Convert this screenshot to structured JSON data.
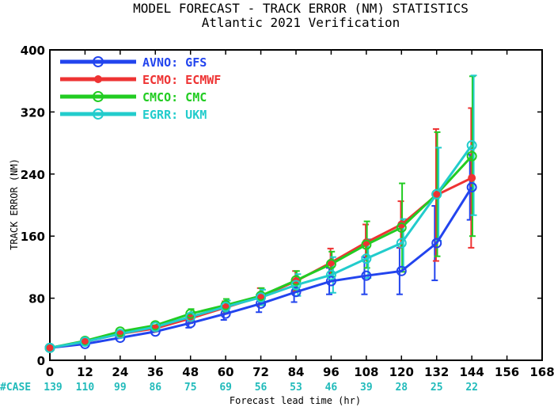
{
  "chart_data": {
    "type": "line",
    "title": "MODEL FORECAST - TRACK ERROR (NM) STATISTICS",
    "subtitle": "Atlantic 2021 Verification",
    "xlabel": "Forecast lead time (hr)",
    "ylabel": "TRACK ERROR (NM)",
    "xlim": [
      0,
      168
    ],
    "ylim": [
      0,
      400
    ],
    "xticks": [
      "0",
      "12",
      "24",
      "36",
      "48",
      "60",
      "72",
      "84",
      "96",
      "108",
      "120",
      "132",
      "144",
      "156",
      "168"
    ],
    "yticks": [
      "0",
      "80",
      "160",
      "240",
      "320",
      "400"
    ],
    "grid": false,
    "legend_position": "top-left",
    "cases_label": "#CASE",
    "cases": [
      {
        "x": 0,
        "n": "139"
      },
      {
        "x": 12,
        "n": "110"
      },
      {
        "x": 24,
        "n": "99"
      },
      {
        "x": 36,
        "n": "86"
      },
      {
        "x": 48,
        "n": "75"
      },
      {
        "x": 60,
        "n": "69"
      },
      {
        "x": 72,
        "n": "56"
      },
      {
        "x": 84,
        "n": "53"
      },
      {
        "x": 96,
        "n": "46"
      },
      {
        "x": 108,
        "n": "39"
      },
      {
        "x": 120,
        "n": "28"
      },
      {
        "x": 132,
        "n": "25"
      },
      {
        "x": 144,
        "n": "22"
      }
    ],
    "series": [
      {
        "name": "AVNO:",
        "desc": "GFS",
        "color": "#2244ee",
        "marker": "open-circle",
        "x": [
          0,
          12,
          24,
          36,
          48,
          60,
          72,
          84,
          96,
          108,
          120,
          132,
          144
        ],
        "y": [
          16,
          21,
          29,
          37,
          48,
          60,
          73,
          88,
          102,
          109,
          115,
          151,
          223
        ],
        "err": [
          null,
          null,
          null,
          null,
          6,
          8,
          11,
          13,
          17,
          24,
          30,
          48,
          42
        ]
      },
      {
        "name": "ECMO:",
        "desc": "ECMWF",
        "color": "#ee3333",
        "marker": "filled-circle",
        "x": [
          0,
          12,
          24,
          36,
          48,
          60,
          72,
          84,
          96,
          108,
          120,
          132,
          144
        ],
        "y": [
          16,
          24,
          34,
          41,
          54,
          68,
          82,
          102,
          126,
          152,
          175,
          213,
          235
        ],
        "err": [
          null,
          null,
          null,
          null,
          6,
          8,
          11,
          13,
          18,
          23,
          30,
          85,
          90
        ]
      },
      {
        "name": "CMCO:",
        "desc": "CMC",
        "color": "#22cc22",
        "marker": "open-circle",
        "x": [
          0,
          12,
          24,
          36,
          48,
          60,
          72,
          84,
          96,
          108,
          120,
          132,
          144
        ],
        "y": [
          16,
          25,
          37,
          45,
          60,
          71,
          83,
          103,
          124,
          149,
          171,
          214,
          263
        ],
        "err": [
          null,
          null,
          null,
          null,
          6,
          8,
          10,
          12,
          16,
          30,
          57,
          80,
          103
        ]
      },
      {
        "name": "EGRR:",
        "desc": "UKM",
        "color": "#22cccc",
        "marker": "open-circle",
        "x": [
          0,
          12,
          24,
          36,
          48,
          60,
          72,
          84,
          96,
          108,
          120,
          132,
          144
        ],
        "y": [
          16,
          24,
          34,
          43,
          56,
          69,
          81,
          97,
          110,
          131,
          151,
          214,
          277
        ],
        "err": [
          null,
          null,
          null,
          null,
          6,
          8,
          10,
          14,
          23,
          25,
          31,
          60,
          90
        ]
      }
    ]
  }
}
